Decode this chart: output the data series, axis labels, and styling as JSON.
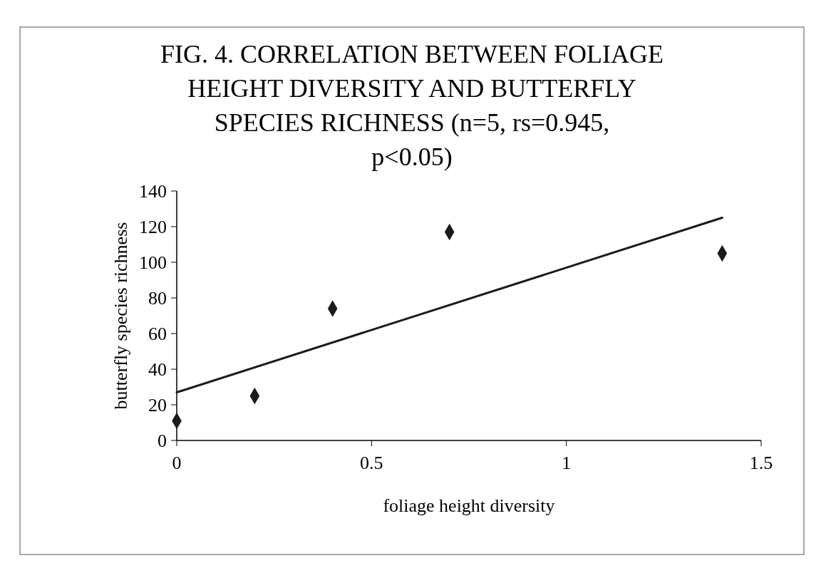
{
  "chart_data": {
    "type": "scatter",
    "title": "FIG. 4. CORRELATION BETWEEN FOLIAGE HEIGHT DIVERSITY AND BUTTERFLY SPECIES RICHNESS (n=5, rs=0.945, p<0.05)",
    "xlabel": "foliage height diversity",
    "ylabel": "butterfly species richness",
    "xlim": [
      0,
      1.5
    ],
    "xticks": [
      0,
      0.5,
      1,
      1.5
    ],
    "ylim": [
      0,
      140
    ],
    "yticks": [
      0,
      20,
      40,
      60,
      80,
      100,
      120,
      140
    ],
    "grid": false,
    "marker": "diamond",
    "series": [
      {
        "color": "#1a1a1a",
        "x": [
          0,
          0.2,
          0.4,
          0.7,
          1.4
        ],
        "values": [
          11,
          25,
          74,
          117,
          105
        ]
      },
      {
        "type": "line",
        "color": "#1a1a1a",
        "line_style": "solid",
        "marker": "none",
        "x": [
          0,
          1.4
        ],
        "values": [
          27,
          125
        ]
      }
    ]
  }
}
